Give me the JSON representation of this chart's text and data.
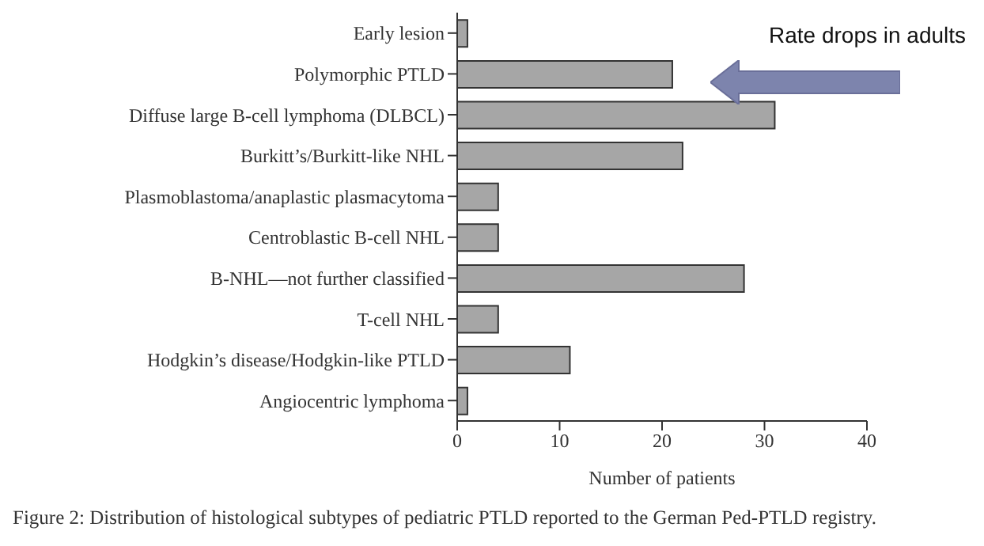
{
  "chart_data": {
    "type": "bar",
    "orientation": "horizontal",
    "categories": [
      "Early lesion",
      "Polymorphic PTLD",
      "Diffuse large B-cell lymphoma (DLBCL)",
      "Burkitt’s/Burkitt-like NHL",
      "Plasmoblastoma/anaplastic plasmacytoma",
      "Centroblastic B-cell NHL",
      "B-NHL—not further classified",
      "T-cell NHL",
      "Hodgkin’s disease/Hodgkin-like PTLD",
      "Angiocentric lymphoma"
    ],
    "values": [
      1,
      21,
      31,
      22,
      4,
      4,
      28,
      4,
      11,
      1
    ],
    "color": "#a6a6a6",
    "xlim": [
      0,
      40
    ],
    "xticks": [
      0,
      10,
      20,
      30,
      40
    ],
    "xlabel": "Number of patients",
    "grid": false,
    "legend": false,
    "annotations": [
      "Rate drops in adults",
      "Figure 2: Distribution of histological subtypes of pediatric PTLD reported to the German Ped-PTLD registry."
    ]
  }
}
